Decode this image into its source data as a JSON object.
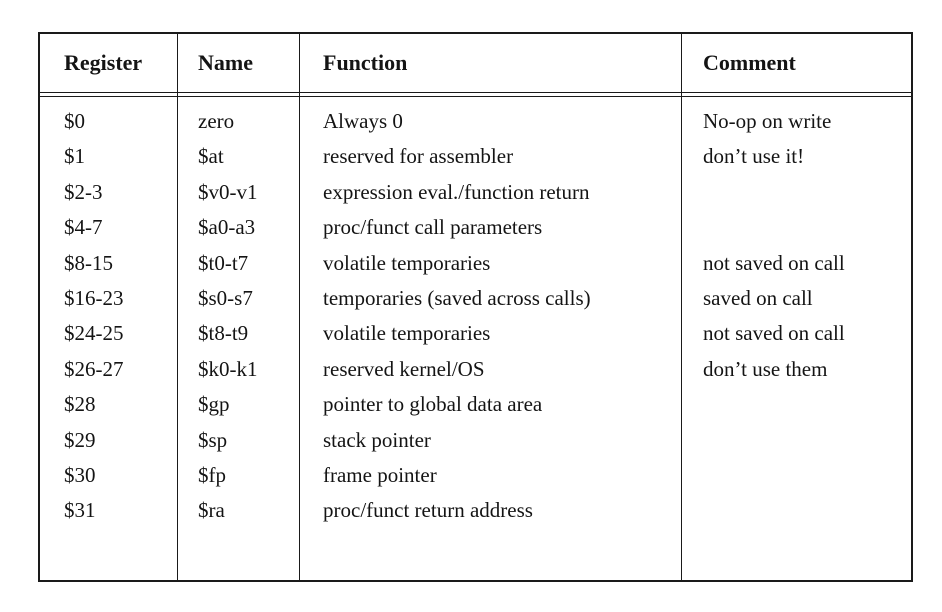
{
  "table": {
    "headers": {
      "register": "Register",
      "name": "Name",
      "function": "Function",
      "comment": "Comment"
    },
    "rows": [
      {
        "register": "$0",
        "name": "zero",
        "function": "Always 0",
        "comment": "No-op on write"
      },
      {
        "register": "$1",
        "name": "$at",
        "function": "reserved for assembler",
        "comment": "don’t use it!"
      },
      {
        "register": "$2-3",
        "name": "$v0-v1",
        "function": "expression eval./function return",
        "comment": ""
      },
      {
        "register": "$4-7",
        "name": "$a0-a3",
        "function": "proc/funct call parameters",
        "comment": ""
      },
      {
        "register": "$8-15",
        "name": "$t0-t7",
        "function": "volatile temporaries",
        "comment": "not saved on call"
      },
      {
        "register": "$16-23",
        "name": "$s0-s7",
        "function": "temporaries (saved across calls)",
        "comment": "saved on call"
      },
      {
        "register": "$24-25",
        "name": "$t8-t9",
        "function": "volatile temporaries",
        "comment": "not saved on call"
      },
      {
        "register": "$26-27",
        "name": "$k0-k1",
        "function": "reserved kernel/OS",
        "comment": "don’t use them"
      },
      {
        "register": "$28",
        "name": "$gp",
        "function": "pointer to global data area",
        "comment": ""
      },
      {
        "register": "$29",
        "name": "$sp",
        "function": "stack pointer",
        "comment": ""
      },
      {
        "register": "$30",
        "name": "$fp",
        "function": "frame pointer",
        "comment": ""
      },
      {
        "register": "$31",
        "name": "$ra",
        "function": "proc/funct return address",
        "comment": ""
      }
    ]
  }
}
